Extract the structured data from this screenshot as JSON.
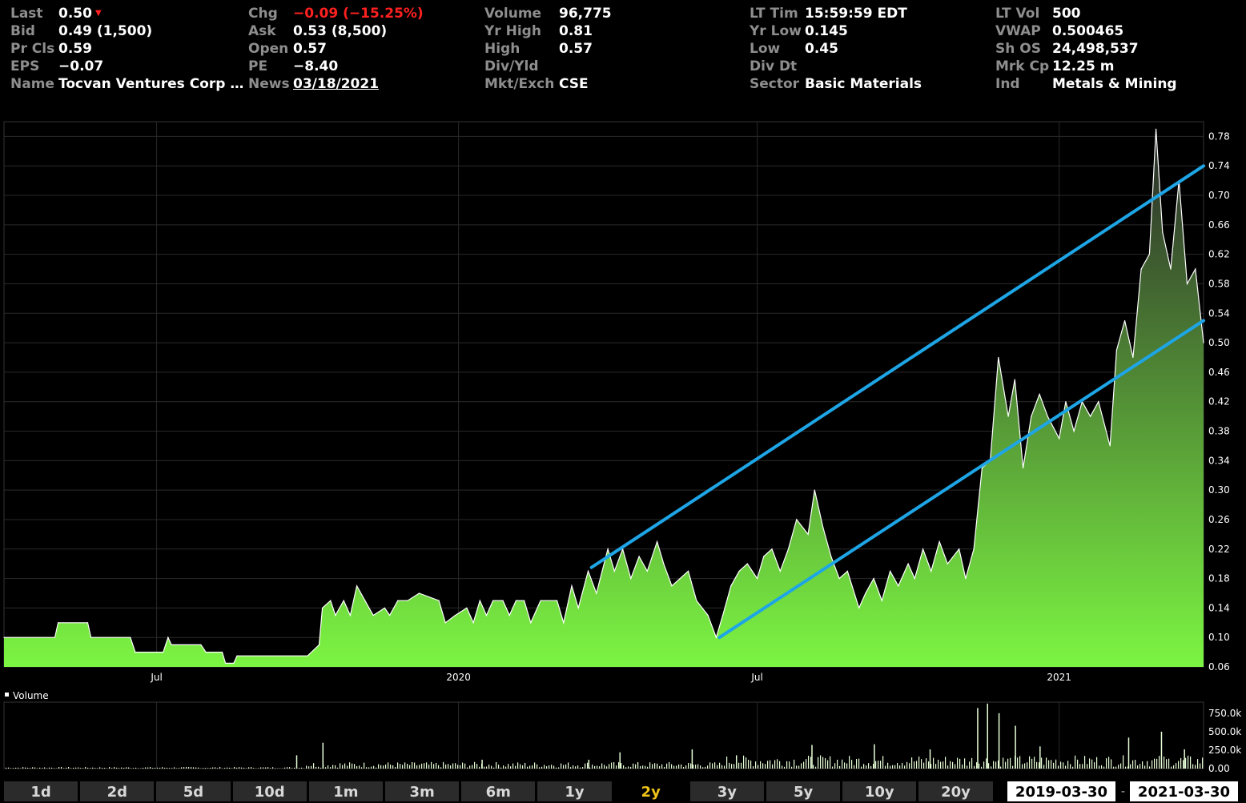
{
  "quote": {
    "col1": [
      {
        "label": "Last",
        "value": "0.50",
        "down_arrow": "▼"
      },
      {
        "label": "Bid",
        "value": "0.49 (1,500)"
      },
      {
        "label": "Pr Cls",
        "value": "0.59"
      },
      {
        "label": "EPS",
        "value": "−0.07"
      },
      {
        "label": "Name",
        "value": "Tocvan Ventures Corp …"
      }
    ],
    "col2": [
      {
        "label": "Chg",
        "value": "−0.09 (−15.25%)"
      },
      {
        "label": "Ask",
        "value": "0.53 (8,500)"
      },
      {
        "label": "Open",
        "value": "0.57"
      },
      {
        "label": "PE",
        "value": "−8.40"
      },
      {
        "label": "News",
        "value": "03/18/2021"
      }
    ],
    "col3": [
      {
        "label": "Volume",
        "value": "96,775"
      },
      {
        "label": "Yr High",
        "value": "0.81"
      },
      {
        "label": "High",
        "value": "0.57"
      },
      {
        "label": "Div/Yld",
        "value": ""
      },
      {
        "label": "Mkt/Exch",
        "value": "CSE"
      }
    ],
    "col4": [
      {
        "label": "LT Tim",
        "value": "15:59:59 EDT"
      },
      {
        "label": "Yr Low",
        "value": "0.145"
      },
      {
        "label": "Low",
        "value": "0.45"
      },
      {
        "label": "Div Dt",
        "value": ""
      },
      {
        "label": "Sector",
        "value": "Basic Materials"
      }
    ],
    "col5": [
      {
        "label": "LT Vol",
        "value": "500"
      },
      {
        "label": "VWAP",
        "value": "0.500465"
      },
      {
        "label": "Sh OS",
        "value": "24,498,537"
      },
      {
        "label": "Mrk Cp",
        "value": "12.25 m"
      },
      {
        "label": "Ind",
        "value": "Metals & Mining"
      }
    ]
  },
  "timeframes": {
    "buttons": [
      "1d",
      "2d",
      "5d",
      "10d",
      "1m",
      "3m",
      "6m",
      "1y",
      "2y",
      "3y",
      "5y",
      "10y",
      "20y"
    ],
    "active": "2y"
  },
  "date_range": {
    "start": "2019-03-30",
    "end": "2021-03-30",
    "separator": "-"
  },
  "colors": {
    "area_top": "#2a2a2a",
    "area_bottom": "#7cf542",
    "price_line": "#ffffff",
    "trendline": "#1ea5e6",
    "grid": "#2a2a2a",
    "negative": "#ff2020",
    "active_timeframe": "#f0c419"
  },
  "chart_data": {
    "type": "area",
    "x_start": "2019-03-30",
    "x_end": "2021-03-30",
    "x_tick_labels": [
      {
        "date": "2019-07-01",
        "label": "Jul"
      },
      {
        "date": "2020-01-01",
        "label": "2020"
      },
      {
        "date": "2020-07-01",
        "label": "Jul"
      },
      {
        "date": "2021-01-01",
        "label": "2021"
      }
    ],
    "y_ticks": [
      "0.06",
      "0.10",
      "0.14",
      "0.18",
      "0.22",
      "0.26",
      "0.30",
      "0.34",
      "0.38",
      "0.42",
      "0.46",
      "0.50",
      "0.54",
      "0.58",
      "0.62",
      "0.66",
      "0.70",
      "0.74",
      "0.78"
    ],
    "ylim": [
      0.06,
      0.8
    ],
    "series": [
      {
        "points": [
          [
            "2019-03-30",
            0.1
          ],
          [
            "2019-04-30",
            0.1
          ],
          [
            "2019-05-02",
            0.12
          ],
          [
            "2019-05-20",
            0.12
          ],
          [
            "2019-05-22",
            0.1
          ],
          [
            "2019-06-15",
            0.1
          ],
          [
            "2019-06-18",
            0.08
          ],
          [
            "2019-07-05",
            0.08
          ],
          [
            "2019-07-08",
            0.1
          ],
          [
            "2019-07-10",
            0.09
          ],
          [
            "2019-07-28",
            0.09
          ],
          [
            "2019-07-31",
            0.08
          ],
          [
            "2019-08-10",
            0.08
          ],
          [
            "2019-08-12",
            0.065
          ],
          [
            "2019-08-17",
            0.065
          ],
          [
            "2019-08-19",
            0.075
          ],
          [
            "2019-10-01",
            0.075
          ],
          [
            "2019-10-08",
            0.09
          ],
          [
            "2019-10-10",
            0.14
          ],
          [
            "2019-10-15",
            0.15
          ],
          [
            "2019-10-18",
            0.13
          ],
          [
            "2019-10-23",
            0.15
          ],
          [
            "2019-10-27",
            0.13
          ],
          [
            "2019-10-31",
            0.17
          ],
          [
            "2019-11-05",
            0.15
          ],
          [
            "2019-11-10",
            0.13
          ],
          [
            "2019-11-17",
            0.14
          ],
          [
            "2019-11-20",
            0.13
          ],
          [
            "2019-11-25",
            0.15
          ],
          [
            "2019-12-01",
            0.15
          ],
          [
            "2019-12-08",
            0.16
          ],
          [
            "2019-12-20",
            0.15
          ],
          [
            "2019-12-24",
            0.12
          ],
          [
            "2019-12-30",
            0.13
          ],
          [
            "2020-01-06",
            0.14
          ],
          [
            "2020-01-10",
            0.12
          ],
          [
            "2020-01-14",
            0.15
          ],
          [
            "2020-01-18",
            0.13
          ],
          [
            "2020-01-22",
            0.15
          ],
          [
            "2020-01-28",
            0.15
          ],
          [
            "2020-02-01",
            0.13
          ],
          [
            "2020-02-05",
            0.15
          ],
          [
            "2020-02-10",
            0.15
          ],
          [
            "2020-02-14",
            0.12
          ],
          [
            "2020-02-20",
            0.15
          ],
          [
            "2020-03-01",
            0.15
          ],
          [
            "2020-03-05",
            0.12
          ],
          [
            "2020-03-10",
            0.17
          ],
          [
            "2020-03-14",
            0.14
          ],
          [
            "2020-03-20",
            0.19
          ],
          [
            "2020-03-25",
            0.16
          ],
          [
            "2020-04-01",
            0.22
          ],
          [
            "2020-04-05",
            0.19
          ],
          [
            "2020-04-10",
            0.22
          ],
          [
            "2020-04-15",
            0.18
          ],
          [
            "2020-04-20",
            0.21
          ],
          [
            "2020-04-25",
            0.19
          ],
          [
            "2020-05-01",
            0.23
          ],
          [
            "2020-05-05",
            0.2
          ],
          [
            "2020-05-10",
            0.17
          ],
          [
            "2020-05-15",
            0.18
          ],
          [
            "2020-05-20",
            0.19
          ],
          [
            "2020-05-25",
            0.15
          ],
          [
            "2020-06-01",
            0.13
          ],
          [
            "2020-06-06",
            0.1
          ],
          [
            "2020-06-10",
            0.13
          ],
          [
            "2020-06-15",
            0.17
          ],
          [
            "2020-06-20",
            0.19
          ],
          [
            "2020-06-25",
            0.2
          ],
          [
            "2020-07-01",
            0.18
          ],
          [
            "2020-07-05",
            0.21
          ],
          [
            "2020-07-10",
            0.22
          ],
          [
            "2020-07-15",
            0.19
          ],
          [
            "2020-07-20",
            0.22
          ],
          [
            "2020-07-25",
            0.26
          ],
          [
            "2020-08-01",
            0.24
          ],
          [
            "2020-08-05",
            0.3
          ],
          [
            "2020-08-10",
            0.25
          ],
          [
            "2020-08-15",
            0.21
          ],
          [
            "2020-08-20",
            0.18
          ],
          [
            "2020-08-25",
            0.19
          ],
          [
            "2020-09-01",
            0.14
          ],
          [
            "2020-09-05",
            0.16
          ],
          [
            "2020-09-10",
            0.18
          ],
          [
            "2020-09-15",
            0.15
          ],
          [
            "2020-09-20",
            0.19
          ],
          [
            "2020-09-25",
            0.17
          ],
          [
            "2020-10-01",
            0.2
          ],
          [
            "2020-10-05",
            0.18
          ],
          [
            "2020-10-10",
            0.22
          ],
          [
            "2020-10-15",
            0.19
          ],
          [
            "2020-10-20",
            0.23
          ],
          [
            "2020-10-25",
            0.2
          ],
          [
            "2020-11-01",
            0.22
          ],
          [
            "2020-11-05",
            0.18
          ],
          [
            "2020-11-10",
            0.22
          ],
          [
            "2020-11-15",
            0.33
          ],
          [
            "2020-11-20",
            0.34
          ],
          [
            "2020-11-25",
            0.48
          ],
          [
            "2020-12-01",
            0.4
          ],
          [
            "2020-12-05",
            0.45
          ],
          [
            "2020-12-10",
            0.33
          ],
          [
            "2020-12-15",
            0.4
          ],
          [
            "2020-12-20",
            0.43
          ],
          [
            "2020-12-25",
            0.4
          ],
          [
            "2021-01-01",
            0.37
          ],
          [
            "2021-01-05",
            0.42
          ],
          [
            "2021-01-10",
            0.38
          ],
          [
            "2021-01-15",
            0.42
          ],
          [
            "2021-01-20",
            0.4
          ],
          [
            "2021-01-25",
            0.42
          ],
          [
            "2021-02-01",
            0.36
          ],
          [
            "2021-02-05",
            0.49
          ],
          [
            "2021-02-10",
            0.53
          ],
          [
            "2021-02-15",
            0.48
          ],
          [
            "2021-02-20",
            0.6
          ],
          [
            "2021-02-25",
            0.62
          ],
          [
            "2021-03-01",
            0.79
          ],
          [
            "2021-03-05",
            0.65
          ],
          [
            "2021-03-10",
            0.6
          ],
          [
            "2021-03-15",
            0.72
          ],
          [
            "2021-03-20",
            0.58
          ],
          [
            "2021-03-25",
            0.6
          ],
          [
            "2021-03-30",
            0.5
          ]
        ]
      }
    ],
    "trendlines": [
      {
        "from": [
          "2020-03-22",
          0.195
        ],
        "to": [
          "2021-03-30",
          0.74
        ]
      },
      {
        "from": [
          "2020-06-08",
          0.1
        ],
        "to": [
          "2021-03-30",
          0.53
        ]
      }
    ],
    "volume": {
      "label": "Volume",
      "y_ticks": [
        "0.00",
        "250.0k",
        "500.0k",
        "750.0k"
      ],
      "ylim": [
        0,
        900000
      ],
      "spikes": [
        [
          "2019-09-24",
          180000
        ],
        [
          "2019-10-10",
          350000
        ],
        [
          "2020-01-15",
          120000
        ],
        [
          "2020-03-20",
          120000
        ],
        [
          "2020-04-08",
          220000
        ],
        [
          "2020-05-22",
          260000
        ],
        [
          "2020-06-18",
          180000
        ],
        [
          "2020-08-03",
          320000
        ],
        [
          "2020-09-10",
          330000
        ],
        [
          "2020-10-14",
          260000
        ],
        [
          "2020-11-12",
          820000
        ],
        [
          "2020-11-18",
          880000
        ],
        [
          "2020-11-25",
          750000
        ],
        [
          "2020-12-05",
          580000
        ],
        [
          "2020-12-20",
          300000
        ],
        [
          "2021-02-12",
          420000
        ],
        [
          "2021-03-04",
          500000
        ],
        [
          "2021-03-18",
          260000
        ]
      ]
    }
  }
}
